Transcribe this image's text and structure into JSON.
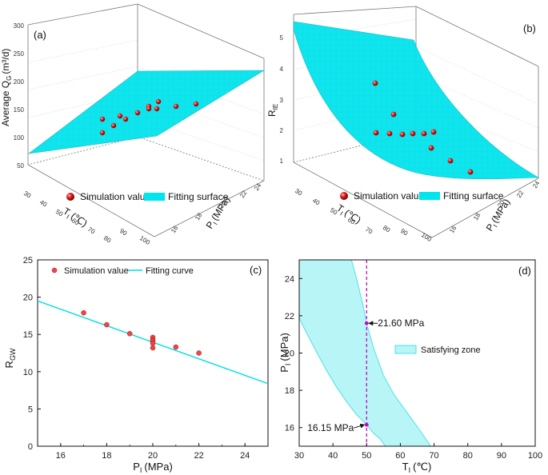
{
  "colors": {
    "surface": "#00e5ee",
    "surface_edge": "#1fb5bd",
    "point": "#d62020",
    "line": "#00dede",
    "zone": "#b8f5f7",
    "zone_edge": "#4fe0e6",
    "marker": "#cc00cc"
  },
  "chart_data": [
    {
      "id": "a",
      "type": "scatter3d",
      "panel_label": "(a)",
      "zlabel": "Average Q",
      "zlabel_sub": "G",
      "zlabel_unit": "(m³/d)",
      "xlabel": "T",
      "xlabel_sub": "I",
      "xlabel_unit": "(℃)",
      "ylabel": "P",
      "ylabel_sub": "I",
      "ylabel_unit": "(MPa)",
      "z_ticks": [
        "50",
        "100",
        "150",
        "200",
        "250",
        "300"
      ],
      "x_ticks": [
        "30",
        "40",
        "50",
        "60",
        "70",
        "80",
        "90",
        "100"
      ],
      "y_ticks": [
        "16",
        "18",
        "20",
        "22",
        "24"
      ],
      "legend": {
        "points": "Simulation value",
        "surface": "Fitting surface"
      }
    },
    {
      "id": "b",
      "type": "scatter3d",
      "panel_label": "(b)",
      "zlabel": "R",
      "zlabel_sub": "IE",
      "xlabel": "T",
      "xlabel_sub": "I",
      "xlabel_unit": "(℃)",
      "ylabel": "P",
      "ylabel_sub": "I",
      "ylabel_unit": "(MPa)",
      "z_ticks": [
        "1",
        "2",
        "3",
        "4",
        "5"
      ],
      "x_ticks": [
        "30",
        "40",
        "50",
        "60",
        "70",
        "80",
        "90",
        "100"
      ],
      "y_ticks": [
        "16",
        "18",
        "20",
        "22",
        "24"
      ],
      "legend": {
        "points": "Simulation value",
        "surface": "Fitting surface"
      }
    },
    {
      "id": "c",
      "type": "scatter",
      "panel_label": "(c)",
      "xlabel": "P",
      "xlabel_sub": "I",
      "xlabel_unit": "(MPa)",
      "ylabel": "R",
      "ylabel_sub": "GW",
      "xlim": [
        15,
        25
      ],
      "ylim": [
        0,
        25
      ],
      "x_ticks": [
        16,
        18,
        20,
        22,
        24
      ],
      "y_ticks": [
        0,
        5,
        10,
        15,
        20,
        25
      ],
      "points": [
        [
          17,
          17.9
        ],
        [
          18,
          16.3
        ],
        [
          19,
          15.1
        ],
        [
          20,
          14.6
        ],
        [
          20,
          14.3
        ],
        [
          20,
          14.1
        ],
        [
          20,
          13.8
        ],
        [
          20,
          13.2
        ],
        [
          21,
          13.3
        ],
        [
          22,
          12.5
        ]
      ],
      "fit_line": {
        "x": [
          15,
          25
        ],
        "y": [
          19.5,
          8.4
        ]
      },
      "legend": {
        "points": "Simulation value",
        "line": "Fitting curve"
      }
    },
    {
      "id": "d",
      "type": "area",
      "panel_label": "(d)",
      "xlabel": "T",
      "xlabel_sub": "I",
      "xlabel_unit": "(℃)",
      "ylabel": "P",
      "ylabel_sub": "I",
      "ylabel_unit": "(MPa)",
      "xlim": [
        30,
        100
      ],
      "ylim": [
        15,
        25
      ],
      "x_ticks": [
        30,
        40,
        50,
        60,
        70,
        80,
        90,
        100
      ],
      "y_ticks": [
        16,
        18,
        20,
        22,
        24
      ],
      "zone_upper": [
        [
          45.5,
          25
        ],
        [
          47,
          24
        ],
        [
          49,
          22.5
        ],
        [
          50,
          21.6
        ],
        [
          52,
          20.3
        ],
        [
          55,
          18.8
        ],
        [
          58,
          17.8
        ],
        [
          62,
          16.8
        ],
        [
          66,
          15.8
        ],
        [
          69,
          15
        ]
      ],
      "zone_lower": [
        [
          30,
          21.9
        ],
        [
          31,
          21.5
        ],
        [
          33,
          20.8
        ],
        [
          35,
          20.1
        ],
        [
          38,
          19.1
        ],
        [
          41,
          18.2
        ],
        [
          44,
          17.4
        ],
        [
          47,
          16.7
        ],
        [
          50,
          16.15
        ],
        [
          52,
          15.7
        ],
        [
          54,
          15.4
        ],
        [
          55.5,
          15
        ]
      ],
      "vline_x": 50,
      "marks": [
        {
          "x": 50,
          "y": 21.6,
          "label": "21.60 MPa"
        },
        {
          "x": 50,
          "y": 16.15,
          "label": "16.15 MPa"
        }
      ],
      "legend": {
        "zone": "Satisfying zone"
      }
    }
  ]
}
